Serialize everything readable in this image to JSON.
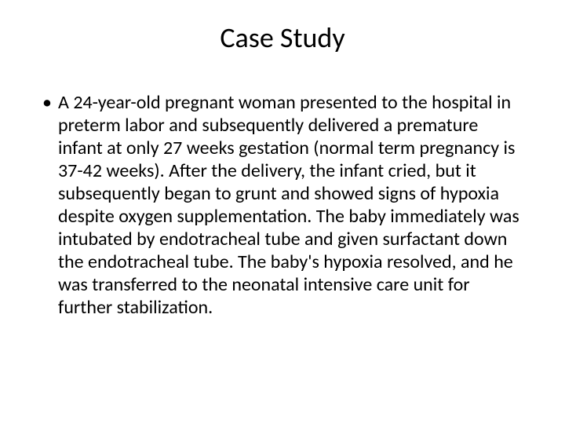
{
  "slide": {
    "title": "Case Study",
    "bullets": [
      {
        "marker": "•",
        "text": "A 24-year-old pregnant woman presented to the hospital in preterm labor and subsequently delivered a premature infant at only 27 weeks gestation (normal term pregnancy is 37-42 weeks). After the delivery, the infant cried, but it subsequently began to grunt and showed signs of hypoxia despite oxygen supplementation. The baby immediately was intubated by endotracheal tube and given surfactant down the endotracheal tube. The baby's hypoxia resolved, and he was transferred to the neonatal intensive care unit for further stabilization."
      }
    ]
  },
  "style": {
    "background_color": "#ffffff",
    "text_color": "#000000",
    "title_fontsize": 36,
    "body_fontsize": 24,
    "font_family": "Calibri"
  }
}
